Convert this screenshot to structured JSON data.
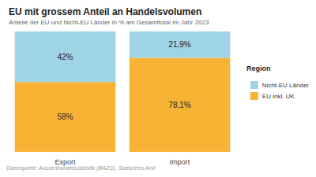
{
  "chart_data": {
    "type": "bar",
    "title": "EU mit grossem Anteil an Handelsvolumen",
    "subtitle": "Anteile der EU und Nicht-EU Länder in % am Gesamttotal im Jahr 2023",
    "annotations": [
      "Datenquelle: Aussenhandelsstatistik (BAZG), Statisches Amt"
    ],
    "categories": [
      "Export",
      "Import"
    ],
    "series": [
      {
        "name": "EU inkl. UK",
        "color": "#f8b334",
        "values": [
          58,
          78.1
        ],
        "value_labels": [
          "58%",
          "78,1%"
        ]
      },
      {
        "name": "Nicht-EU Länder",
        "color": "#9fd3e6",
        "values": [
          42,
          21.9
        ],
        "value_labels": [
          "42%",
          "21,9%"
        ]
      }
    ],
    "ylim": [
      0,
      100
    ],
    "stacked": true,
    "data_labels": true,
    "tick_labels": "x",
    "grid": false,
    "legend": "right",
    "legend_title": "Region"
  }
}
